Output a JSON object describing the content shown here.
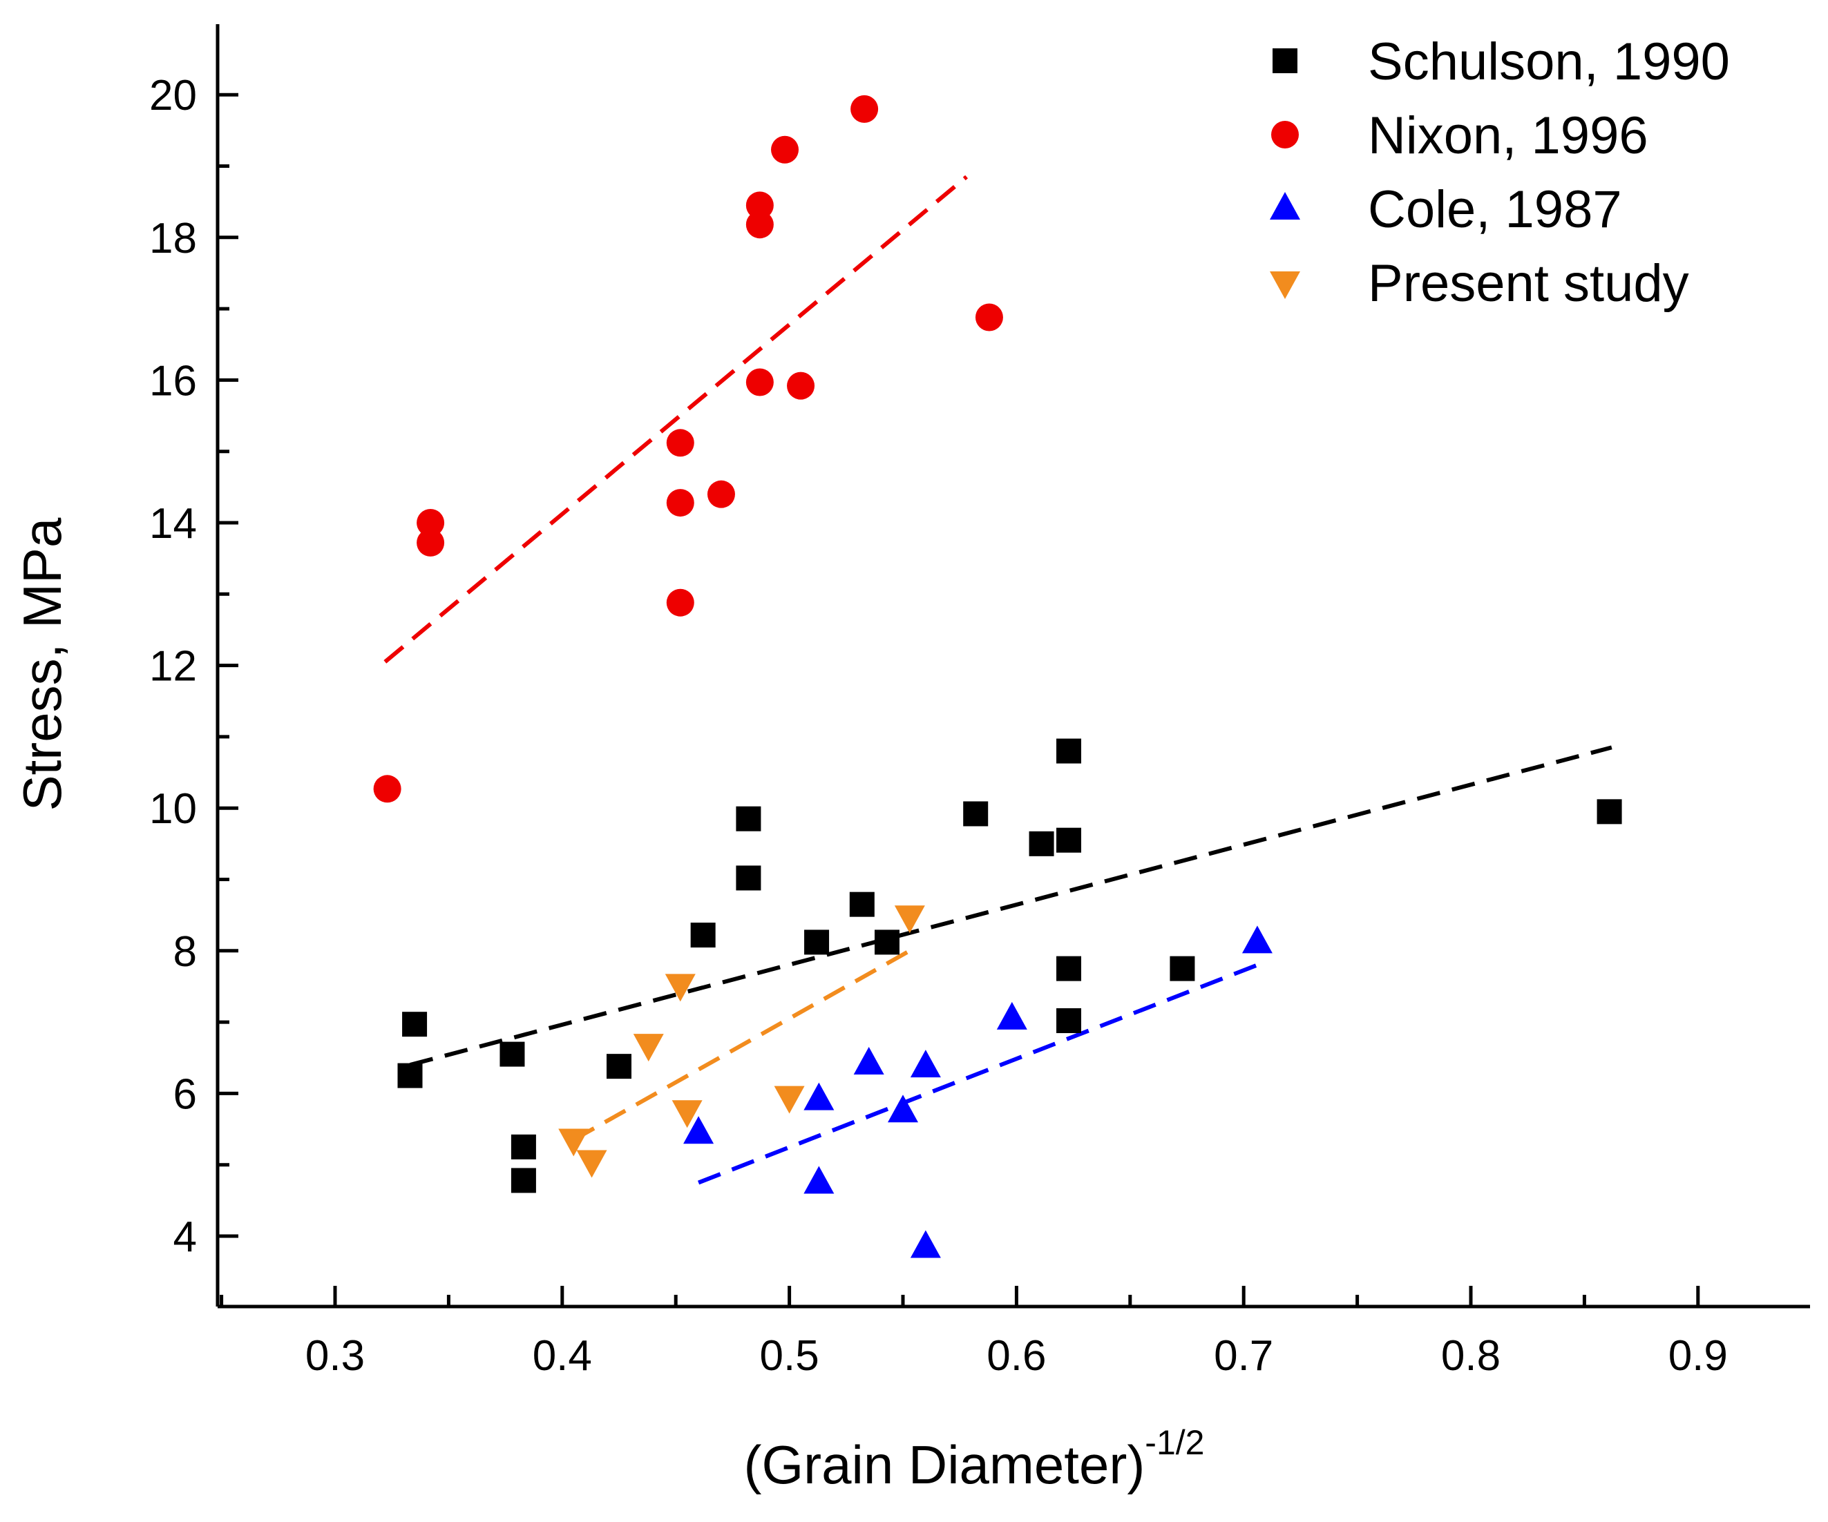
{
  "chart_data": {
    "type": "scatter",
    "title": "",
    "xlabel": "(Grain Diameter)",
    "xlabel_superscript": "-1/2",
    "ylabel": "Stress, MPa",
    "xlim": [
      0.25,
      0.95
    ],
    "ylim": [
      3.0,
      21.0
    ],
    "x_ticks": [
      0.3,
      0.4,
      0.5,
      0.6,
      0.7,
      0.8,
      0.9
    ],
    "x_tick_labels": [
      "0.3",
      "0.4",
      "0.5",
      "0.6",
      "0.7",
      "0.8",
      "0.9"
    ],
    "y_ticks": [
      4,
      6,
      8,
      10,
      12,
      14,
      16,
      18,
      20
    ],
    "y_tick_labels": [
      "4",
      "6",
      "8",
      "10",
      "12",
      "14",
      "16",
      "18",
      "20"
    ],
    "grid": false,
    "legend_position": "top-right",
    "series": [
      {
        "name": "Schulson, 1990",
        "marker": "square",
        "color": "#000000",
        "points": [
          [
            0.333,
            6.25
          ],
          [
            0.335,
            6.97
          ],
          [
            0.378,
            6.55
          ],
          [
            0.383,
            5.25
          ],
          [
            0.383,
            4.78
          ],
          [
            0.425,
            6.38
          ],
          [
            0.462,
            8.22
          ],
          [
            0.482,
            9.85
          ],
          [
            0.482,
            9.02
          ],
          [
            0.512,
            8.12
          ],
          [
            0.532,
            8.65
          ],
          [
            0.543,
            8.12
          ],
          [
            0.582,
            9.92
          ],
          [
            0.611,
            9.5
          ],
          [
            0.623,
            10.8
          ],
          [
            0.623,
            9.55
          ],
          [
            0.623,
            7.75
          ],
          [
            0.623,
            7.02
          ],
          [
            0.673,
            7.75
          ],
          [
            0.861,
            9.95
          ]
        ],
        "fit_line": [
          [
            0.333,
            6.4
          ],
          [
            0.862,
            10.85
          ]
        ]
      },
      {
        "name": "Nixon, 1996",
        "marker": "circle",
        "color": "#ee0000",
        "points": [
          [
            0.323,
            10.27
          ],
          [
            0.342,
            14.0
          ],
          [
            0.342,
            13.72
          ],
          [
            0.452,
            15.12
          ],
          [
            0.452,
            14.28
          ],
          [
            0.452,
            12.88
          ],
          [
            0.47,
            14.4
          ],
          [
            0.487,
            18.45
          ],
          [
            0.487,
            18.18
          ],
          [
            0.487,
            15.97
          ],
          [
            0.498,
            19.23
          ],
          [
            0.505,
            15.92
          ],
          [
            0.533,
            19.8
          ],
          [
            0.588,
            16.88
          ]
        ],
        "fit_line": [
          [
            0.322,
            12.05
          ],
          [
            0.578,
            18.85
          ]
        ]
      },
      {
        "name": "Cole, 1987",
        "marker": "triangle-up",
        "color": "#0000ff",
        "points": [
          [
            0.46,
            5.45
          ],
          [
            0.513,
            5.92
          ],
          [
            0.513,
            4.75
          ],
          [
            0.535,
            6.42
          ],
          [
            0.55,
            5.75
          ],
          [
            0.56,
            6.38
          ],
          [
            0.56,
            3.85
          ],
          [
            0.598,
            7.05
          ],
          [
            0.706,
            8.12
          ]
        ],
        "fit_line": [
          [
            0.46,
            4.75
          ],
          [
            0.71,
            7.85
          ]
        ]
      },
      {
        "name": "Present study",
        "marker": "triangle-down",
        "color": "#f28c1e",
        "points": [
          [
            0.405,
            5.35
          ],
          [
            0.413,
            5.05
          ],
          [
            0.438,
            6.68
          ],
          [
            0.452,
            7.52
          ],
          [
            0.455,
            5.75
          ],
          [
            0.5,
            5.95
          ],
          [
            0.553,
            8.48
          ]
        ],
        "fit_line": [
          [
            0.405,
            5.35
          ],
          [
            0.553,
            8.0
          ]
        ]
      }
    ]
  }
}
